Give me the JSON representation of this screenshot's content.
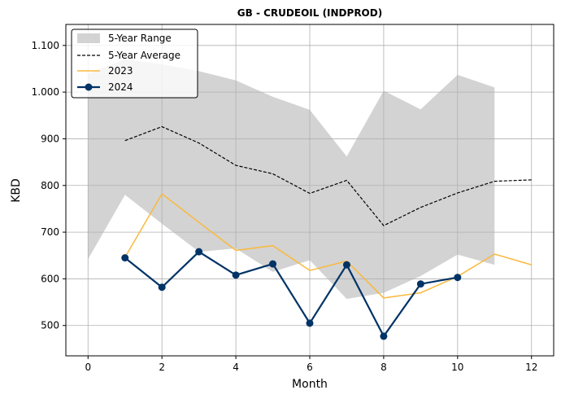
{
  "chart_data": {
    "type": "line",
    "title": "GB - CRUDEOIL (INDPROD)",
    "xlabel": "Month",
    "ylabel": "KBD",
    "xlim": [
      -0.6,
      12.6
    ],
    "ylim": [
      435,
      1145
    ],
    "x_ticks": [
      0,
      2,
      4,
      6,
      8,
      10,
      12
    ],
    "x_tick_labels": [
      "0",
      "2",
      "4",
      "6",
      "8",
      "10",
      "12"
    ],
    "y_ticks": [
      500,
      600,
      700,
      800,
      900,
      1000,
      1100
    ],
    "y_tick_labels": [
      "500",
      "600",
      "700",
      "800",
      "900",
      "1.000",
      "1.100"
    ],
    "grid": true,
    "legend_position": "top-left",
    "range_band": {
      "name": "5-Year Range",
      "color": "#d3d3d3",
      "x": [
        0,
        1,
        2,
        3,
        4,
        5,
        6,
        7,
        8,
        9,
        10,
        11
      ],
      "upper": [
        1040,
        1070,
        1060,
        1045,
        1025,
        990,
        962,
        862,
        1003,
        963,
        1037,
        1010
      ],
      "lower": [
        642,
        780,
        718,
        658,
        665,
        615,
        640,
        557,
        570,
        606,
        652,
        630
      ]
    },
    "series": [
      {
        "name": "5-Year Average",
        "color": "#000000",
        "style": "dashed",
        "x": [
          1,
          2,
          3,
          4,
          5,
          6,
          7,
          8,
          9,
          10,
          11,
          12
        ],
        "values": [
          896,
          926,
          891,
          843,
          825,
          783,
          811,
          714,
          753,
          784,
          809,
          812
        ]
      },
      {
        "name": "2023",
        "color": "#f9b93e",
        "style": "solid",
        "x": [
          1,
          2,
          3,
          4,
          5,
          6,
          7,
          8,
          9,
          10,
          11,
          12
        ],
        "values": [
          646,
          782,
          721,
          661,
          671,
          618,
          638,
          559,
          570,
          605,
          653,
          630
        ]
      },
      {
        "name": "2024",
        "color": "#003366",
        "style": "solid-markers",
        "x": [
          1,
          2,
          3,
          4,
          5,
          6,
          7,
          8,
          9,
          10
        ],
        "values": [
          645,
          582,
          658,
          608,
          632,
          505,
          630,
          477,
          589,
          603
        ]
      }
    ]
  }
}
